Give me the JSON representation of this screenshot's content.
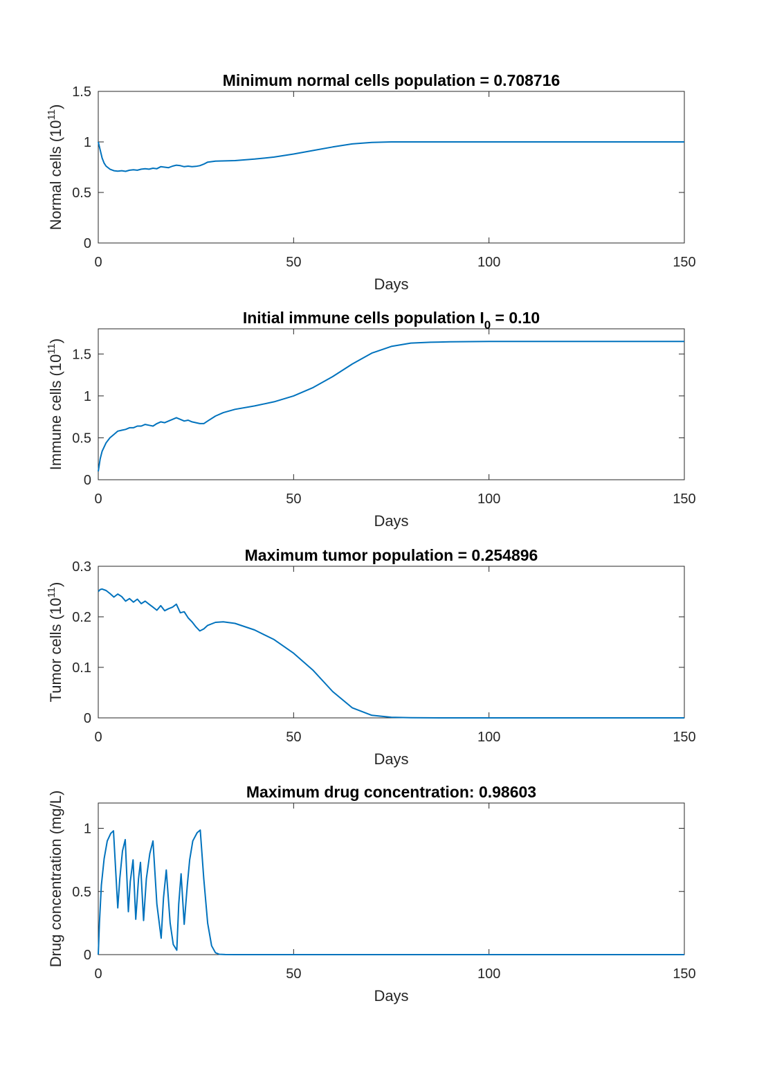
{
  "chart_data": [
    {
      "type": "line",
      "title": "Minimum normal cells population = 0.708716",
      "xlabel": "Days",
      "ylabel": "Normal cells (10",
      "ylabel_sup": "11",
      "ylabel_tail": ")",
      "xlim": [
        0,
        150
      ],
      "ylim": [
        0,
        1.5
      ],
      "xticks": [
        0,
        50,
        100,
        150
      ],
      "yticks": [
        0,
        0.5,
        1,
        1.5
      ],
      "xtick_labels": [
        "0",
        "50",
        "100",
        "150"
      ],
      "ytick_labels": [
        "0",
        "0.5",
        "1",
        "1.5"
      ],
      "color": "#0072BD",
      "series": [
        {
          "x": [
            0,
            0.5,
            1,
            1.5,
            2,
            3,
            4,
            5,
            6,
            7,
            8,
            9,
            10,
            11,
            12,
            13,
            14,
            15,
            16,
            17,
            18,
            19,
            20,
            21,
            22,
            23,
            24,
            25,
            26,
            27,
            28,
            30,
            35,
            40,
            45,
            50,
            55,
            60,
            65,
            70,
            75,
            80,
            90,
            100,
            120,
            150
          ],
          "y": [
            1.0,
            0.92,
            0.84,
            0.79,
            0.76,
            0.73,
            0.715,
            0.71,
            0.715,
            0.709,
            0.72,
            0.725,
            0.72,
            0.73,
            0.735,
            0.73,
            0.74,
            0.735,
            0.755,
            0.75,
            0.745,
            0.76,
            0.77,
            0.765,
            0.755,
            0.76,
            0.755,
            0.758,
            0.765,
            0.78,
            0.8,
            0.81,
            0.815,
            0.83,
            0.85,
            0.88,
            0.915,
            0.95,
            0.98,
            0.995,
            1.0,
            1.0,
            1.0,
            1.0,
            1.0,
            1.0
          ]
        }
      ]
    },
    {
      "type": "line",
      "title": "Initial immune cells population I",
      "title_sub": "0",
      "title_tail": " = 0.10",
      "xlabel": "Days",
      "ylabel": "Immune cells (10",
      "ylabel_sup": "11",
      "ylabel_tail": ")",
      "xlim": [
        0,
        150
      ],
      "ylim": [
        0,
        1.8
      ],
      "xticks": [
        0,
        50,
        100,
        150
      ],
      "yticks": [
        0,
        0.5,
        1,
        1.5
      ],
      "xtick_labels": [
        "0",
        "50",
        "100",
        "150"
      ],
      "ytick_labels": [
        "0",
        "0.5",
        "1",
        "1.5"
      ],
      "color": "#0072BD",
      "series": [
        {
          "x": [
            0,
            0.5,
            1,
            2,
            3,
            4,
            5,
            6,
            7,
            8,
            9,
            10,
            11,
            12,
            13,
            14,
            15,
            16,
            17,
            18,
            19,
            20,
            21,
            22,
            23,
            24,
            25,
            26,
            27,
            28,
            30,
            32,
            35,
            40,
            45,
            50,
            55,
            60,
            65,
            70,
            75,
            80,
            85,
            90,
            100,
            150
          ],
          "y": [
            0.1,
            0.25,
            0.34,
            0.44,
            0.5,
            0.54,
            0.58,
            0.59,
            0.6,
            0.62,
            0.62,
            0.64,
            0.64,
            0.66,
            0.65,
            0.64,
            0.67,
            0.69,
            0.68,
            0.7,
            0.72,
            0.74,
            0.72,
            0.7,
            0.71,
            0.69,
            0.68,
            0.67,
            0.67,
            0.7,
            0.76,
            0.8,
            0.84,
            0.88,
            0.93,
            1.0,
            1.1,
            1.23,
            1.38,
            1.51,
            1.59,
            1.63,
            1.64,
            1.645,
            1.65,
            1.65
          ]
        }
      ]
    },
    {
      "type": "line",
      "title": "Maximum tumor population = 0.254896",
      "xlabel": "Days",
      "ylabel": "Tumor cells (10",
      "ylabel_sup": "11",
      "ylabel_tail": ")",
      "xlim": [
        0,
        150
      ],
      "ylim": [
        0,
        0.3
      ],
      "xticks": [
        0,
        50,
        100,
        150
      ],
      "yticks": [
        0,
        0.1,
        0.2,
        0.3
      ],
      "xtick_labels": [
        "0",
        "50",
        "100",
        "150"
      ],
      "ytick_labels": [
        "0",
        "0.1",
        "0.2",
        "0.3"
      ],
      "color": "#0072BD",
      "series": [
        {
          "x": [
            0,
            0.5,
            1,
            2,
            3,
            4,
            5,
            6,
            7,
            8,
            9,
            10,
            11,
            12,
            13,
            14,
            15,
            16,
            17,
            18,
            19,
            20,
            21,
            22,
            23,
            24,
            25,
            26,
            27,
            28,
            30,
            32,
            35,
            40,
            45,
            50,
            55,
            60,
            65,
            70,
            75,
            80,
            90,
            100,
            150
          ],
          "y": [
            0.25,
            0.254,
            0.2549,
            0.252,
            0.246,
            0.239,
            0.245,
            0.24,
            0.231,
            0.236,
            0.229,
            0.235,
            0.226,
            0.231,
            0.225,
            0.219,
            0.213,
            0.222,
            0.212,
            0.216,
            0.219,
            0.225,
            0.208,
            0.21,
            0.198,
            0.19,
            0.18,
            0.172,
            0.176,
            0.183,
            0.189,
            0.19,
            0.187,
            0.174,
            0.155,
            0.128,
            0.094,
            0.052,
            0.02,
            0.005,
            0.0012,
            0.0003,
            0.0,
            0.0,
            0.0
          ]
        }
      ]
    },
    {
      "type": "line",
      "title": "Maximum drug concentration: 0.98603",
      "xlabel": "Days",
      "ylabel": "Drug concentration (mg/L)",
      "xlim": [
        0,
        150
      ],
      "ylim": [
        0,
        1.2
      ],
      "xticks": [
        0,
        50,
        100,
        150
      ],
      "yticks": [
        0,
        0.5,
        1
      ],
      "xtick_labels": [
        "0",
        "50",
        "100",
        "150"
      ],
      "ytick_labels": [
        "0",
        "0.5",
        "1"
      ],
      "color": "#0072BD",
      "series": [
        {
          "x": [
            0,
            0.3,
            0.8,
            1.5,
            2.3,
            3.2,
            3.9,
            5.0,
            5.5,
            6.2,
            6.9,
            7.7,
            8.2,
            8.9,
            9.6,
            10.3,
            10.8,
            11.6,
            12.3,
            13.2,
            14.0,
            15.0,
            16.1,
            16.7,
            17.4,
            18.4,
            19.2,
            20.1,
            20.6,
            21.2,
            22.0,
            22.8,
            23.4,
            24.2,
            25.3,
            26.1,
            27.0,
            28.0,
            29.0,
            30.0,
            31.0,
            32.5,
            35,
            40,
            150
          ],
          "y": [
            0.0,
            0.25,
            0.55,
            0.76,
            0.9,
            0.96,
            0.98,
            0.37,
            0.6,
            0.82,
            0.91,
            0.34,
            0.58,
            0.75,
            0.28,
            0.6,
            0.73,
            0.27,
            0.6,
            0.8,
            0.9,
            0.4,
            0.13,
            0.45,
            0.67,
            0.25,
            0.08,
            0.035,
            0.4,
            0.64,
            0.24,
            0.55,
            0.75,
            0.9,
            0.965,
            0.986,
            0.6,
            0.25,
            0.07,
            0.015,
            0.003,
            0.0005,
            0.0,
            0.0,
            0.0
          ]
        }
      ]
    }
  ]
}
